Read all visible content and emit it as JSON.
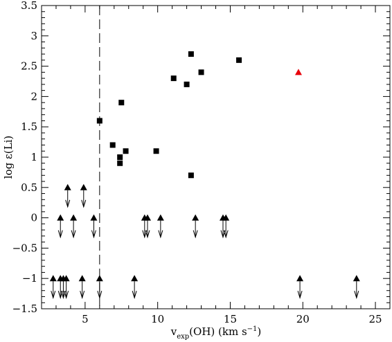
{
  "chart_data": {
    "type": "scatter",
    "xlabel": {
      "base": "v",
      "subscript": "exp",
      "rest": "(OH)  (km s",
      "sup": "−1",
      "close": ")"
    },
    "ylabel": "log ε(Li)",
    "xlim": [
      2,
      26
    ],
    "ylim": [
      -1.5,
      3.5
    ],
    "x_ticks": [
      5,
      10,
      15,
      20,
      25
    ],
    "x_tick_labels": [
      "5",
      "10",
      "15",
      "20",
      "25"
    ],
    "y_ticks": [
      -1.5,
      -1,
      -0.5,
      0,
      0.5,
      1,
      1.5,
      2,
      2.5,
      3,
      3.5
    ],
    "y_tick_labels": [
      "−1.5",
      "−1",
      "−0.5",
      "0",
      "0.5",
      "1",
      "1.5",
      "2",
      "2.5",
      "3",
      "3.5"
    ],
    "grid": false,
    "vline": {
      "x": 6.0,
      "style": "dashed"
    },
    "series": [
      {
        "marker": "square",
        "color": "#000000",
        "points": [
          [
            6.0,
            1.6
          ],
          [
            6.9,
            1.2
          ],
          [
            7.4,
            1.0
          ],
          [
            7.4,
            0.9
          ],
          [
            7.5,
            1.9
          ],
          [
            7.8,
            1.1
          ],
          [
            9.9,
            1.1
          ],
          [
            11.1,
            2.3
          ],
          [
            12.0,
            2.2
          ],
          [
            12.3,
            2.7
          ],
          [
            12.3,
            0.7
          ],
          [
            13.0,
            2.4
          ],
          [
            15.6,
            2.6
          ]
        ]
      },
      {
        "marker": "triangle",
        "color": "#e8000b",
        "points": [
          [
            19.7,
            2.4
          ]
        ]
      },
      {
        "marker": "triangle-upper-limit",
        "color": "#000000",
        "points": [
          [
            3.8,
            0.5
          ],
          [
            4.9,
            0.5
          ],
          [
            3.3,
            0.0
          ],
          [
            4.2,
            0.0
          ],
          [
            5.6,
            0.0
          ],
          [
            9.1,
            0.0
          ],
          [
            9.3,
            0.0
          ],
          [
            10.2,
            0.0
          ],
          [
            12.6,
            0.0
          ],
          [
            14.5,
            0.0
          ],
          [
            14.7,
            0.0
          ],
          [
            2.8,
            -1.0
          ],
          [
            3.3,
            -1.0
          ],
          [
            3.5,
            -1.0
          ],
          [
            3.7,
            -1.0
          ],
          [
            4.8,
            -1.0
          ],
          [
            6.0,
            -1.0
          ],
          [
            8.4,
            -1.0
          ],
          [
            19.8,
            -1.0
          ],
          [
            23.7,
            -1.0
          ]
        ]
      }
    ]
  }
}
